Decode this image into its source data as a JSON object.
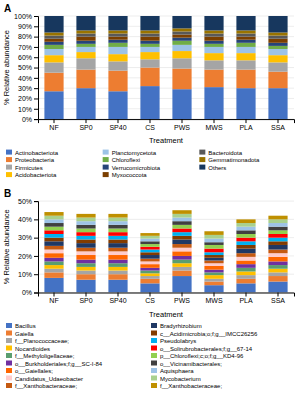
{
  "chart_data": [
    {
      "type": "bar",
      "title": "A",
      "stacked": true,
      "grid": true,
      "legend": "bottom",
      "xlabel": "Treatment",
      "ylabel": "% Relative abundance",
      "categories": [
        "NF",
        "SP0",
        "SP40",
        "CS",
        "PWS",
        "MWS",
        "PLA",
        "SSA"
      ],
      "ylim": [
        0,
        100
      ],
      "yticks": [
        {
          "value": 0,
          "label": "0%"
        },
        {
          "value": 10,
          "label": "10%"
        },
        {
          "value": 20,
          "label": "20%"
        },
        {
          "value": 30,
          "label": "30%"
        },
        {
          "value": 40,
          "label": "40%"
        },
        {
          "value": 50,
          "label": "50%"
        },
        {
          "value": 60,
          "label": "60%"
        },
        {
          "value": 70,
          "label": "70%"
        },
        {
          "value": 80,
          "label": "80%"
        },
        {
          "value": 90,
          "label": "90%"
        },
        {
          "value": 100,
          "label": "100%"
        }
      ],
      "series": [
        {
          "name": "Actinobacteriota",
          "color": "#4472C4",
          "values": [
            27,
            30,
            27,
            32,
            29,
            31,
            30,
            30
          ]
        },
        {
          "name": "Proteobacteria",
          "color": "#ED7D31",
          "values": [
            18,
            18,
            20,
            18,
            20,
            17,
            18,
            16
          ]
        },
        {
          "name": "Firmicutes",
          "color": "#A5A5A5",
          "values": [
            10,
            11,
            9,
            8,
            10,
            9,
            9,
            9
          ]
        },
        {
          "name": "Acidobacteriota",
          "color": "#FFC000",
          "values": [
            7,
            6,
            7,
            7,
            7,
            7,
            7,
            7
          ]
        },
        {
          "name": "Planctomycetota",
          "color": "#9DC3E6",
          "values": [
            6,
            5,
            7,
            5,
            6,
            6,
            6,
            6
          ]
        },
        {
          "name": "Chloroflexi",
          "color": "#70AD47",
          "values": [
            4,
            3,
            4,
            3,
            4,
            3,
            4,
            3
          ]
        },
        {
          "name": "Verrucomicrobiota",
          "color": "#264478",
          "values": [
            3,
            3,
            3,
            3,
            3,
            3,
            3,
            3
          ]
        },
        {
          "name": "Myxococcota",
          "color": "#7B3F00",
          "values": [
            3,
            4,
            3,
            4,
            3,
            4,
            3,
            4
          ]
        },
        {
          "name": "Bacteroidota",
          "color": "#595959",
          "values": [
            3,
            3,
            3,
            3,
            3,
            3,
            3,
            3
          ]
        },
        {
          "name": "Gemmatimonadota",
          "color": "#997300",
          "values": [
            3,
            3,
            3,
            3,
            3,
            3,
            3,
            3
          ]
        },
        {
          "name": "Others",
          "color": "#17375E",
          "values": [
            16,
            14,
            14,
            14,
            12,
            14,
            14,
            16
          ]
        }
      ]
    },
    {
      "type": "bar",
      "title": "B",
      "stacked": true,
      "grid": true,
      "legend": "bottom",
      "xlabel": "Treatment",
      "ylabel": "% Relative abundance",
      "categories": [
        "NF",
        "SP0",
        "SP40",
        "CS",
        "PWS",
        "MWS",
        "PLA",
        "SSA"
      ],
      "ylim": [
        0,
        50
      ],
      "yticks": [
        {
          "value": 0,
          "label": "0%"
        },
        {
          "value": 10,
          "label": "10%"
        },
        {
          "value": 20,
          "label": "20%"
        },
        {
          "value": 30,
          "label": "30%"
        },
        {
          "value": 40,
          "label": "40%"
        },
        {
          "value": 50,
          "label": "50%"
        }
      ],
      "series": [
        {
          "name": "Bacillus",
          "color": "#4472C4",
          "values": [
            8.0,
            7.0,
            7.0,
            5.0,
            9.0,
            4.0,
            5.0,
            6.0
          ]
        },
        {
          "name": "Gaiella",
          "color": "#ED7D31",
          "values": [
            3.0,
            3.0,
            3.0,
            2.5,
            3.0,
            2.0,
            2.5,
            3.0
          ]
        },
        {
          "name": "f__Planococcaceae;",
          "color": "#A5A5A5",
          "values": [
            2.0,
            2.0,
            2.0,
            1.5,
            2.0,
            1.5,
            2.0,
            2.0
          ]
        },
        {
          "name": "Nocardioides",
          "color": "#FFC000",
          "values": [
            2.0,
            2.0,
            2.0,
            1.5,
            2.0,
            2.0,
            2.0,
            2.0
          ]
        },
        {
          "name": "f__Methyloligellaceae;",
          "color": "#5A9E6F",
          "values": [
            2.0,
            2.0,
            2.0,
            1.5,
            2.0,
            1.5,
            2.0,
            2.0
          ]
        },
        {
          "name": "o__Burkholderiales;f;g__SC-I-84",
          "color": "#7030A0",
          "values": [
            2.0,
            2.0,
            2.0,
            1.5,
            2.0,
            1.5,
            2.0,
            2.0
          ]
        },
        {
          "name": "o__Gaiellales;",
          "color": "#FF6600",
          "values": [
            2.5,
            2.5,
            2.5,
            2.0,
            2.5,
            2.0,
            2.0,
            2.5
          ]
        },
        {
          "name": "Candidatus_Udaeobacter",
          "color": "#FFCCCC",
          "values": [
            2.0,
            2.0,
            2.0,
            1.5,
            2.0,
            1.5,
            2.0,
            2.0
          ]
        },
        {
          "name": "f__Xanthobacteraceae;",
          "color": "#C55A11",
          "values": [
            2.0,
            2.0,
            2.0,
            1.5,
            2.0,
            1.5,
            2.0,
            2.0
          ]
        },
        {
          "name": "Bradyrhizobium",
          "color": "#1F3864",
          "values": [
            2.5,
            2.5,
            2.5,
            2.0,
            2.5,
            1.5,
            2.5,
            2.5
          ]
        },
        {
          "name": "c__Acidimicrobia;o;f;g__IMCC26256",
          "color": "#833C00",
          "values": [
            2.0,
            2.0,
            2.0,
            1.5,
            2.0,
            1.5,
            2.0,
            2.0
          ]
        },
        {
          "name": "Pseudolabrys",
          "color": "#00B0F0",
          "values": [
            2.0,
            2.0,
            2.0,
            1.5,
            2.0,
            1.5,
            2.0,
            2.0
          ]
        },
        {
          "name": "o__Solirubrobacterales;f;g__67-14",
          "color": "#FF0000",
          "values": [
            2.0,
            2.0,
            2.0,
            1.5,
            2.0,
            2.0,
            2.0,
            2.0
          ]
        },
        {
          "name": "p__Chloroflexi;c;o;f;g__KD4-96",
          "color": "#92D050",
          "values": [
            2.0,
            2.0,
            2.0,
            1.5,
            2.0,
            2.0,
            2.0,
            2.0
          ]
        },
        {
          "name": "o__Vicinamibacterales;",
          "color": "#404040",
          "values": [
            2.0,
            2.0,
            2.0,
            1.5,
            2.0,
            1.5,
            2.0,
            2.0
          ]
        },
        {
          "name": "Aquisphaera",
          "color": "#9DC3E6",
          "values": [
            2.0,
            2.0,
            2.0,
            1.5,
            2.0,
            2.0,
            2.0,
            2.0
          ]
        },
        {
          "name": "Mycobacterium",
          "color": "#A9D18E",
          "values": [
            2.0,
            2.0,
            2.0,
            1.5,
            2.0,
            2.0,
            2.0,
            2.0
          ]
        },
        {
          "name": "f__Xanthobacteraceae; ",
          "color": "#BF9000",
          "values": [
            2.0,
            2.0,
            2.0,
            1.5,
            2.0,
            2.0,
            2.0,
            2.0
          ]
        }
      ]
    }
  ]
}
